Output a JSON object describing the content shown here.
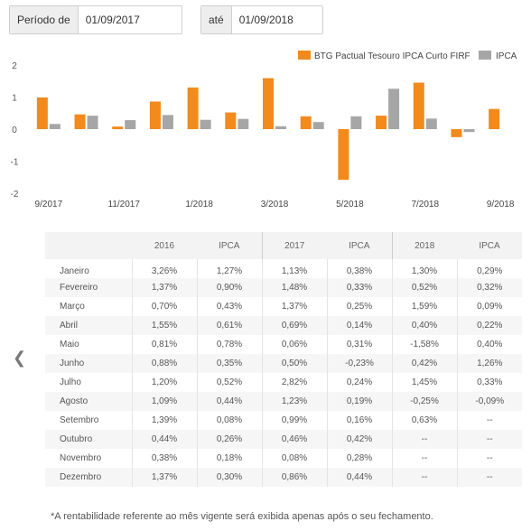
{
  "filters": {
    "start_label": "Período de",
    "start_value": "01/09/2017",
    "end_label": "até",
    "end_value": "01/09/2018"
  },
  "chart_data": {
    "type": "bar",
    "categories": [
      "9/2017",
      "10/2017",
      "11/2017",
      "12/2017",
      "1/2018",
      "2/2018",
      "3/2018",
      "4/2018",
      "5/2018",
      "6/2018",
      "7/2018",
      "8/2018",
      "9/2018"
    ],
    "x_tick_labels": [
      "9/2017",
      "11/2017",
      "1/2018",
      "3/2018",
      "5/2018",
      "7/2018",
      "9/2018"
    ],
    "series": [
      {
        "name": "BTG Pactual Tesouro IPCA Curto FIRF",
        "color": "#f28a1c",
        "values": [
          0.99,
          0.46,
          0.08,
          0.86,
          1.3,
          0.52,
          1.59,
          0.4,
          -1.58,
          0.42,
          1.45,
          -0.25,
          0.63
        ]
      },
      {
        "name": "IPCA",
        "color": "#a6a6a6",
        "values": [
          0.16,
          0.42,
          0.28,
          0.44,
          0.29,
          0.32,
          0.09,
          0.22,
          0.4,
          1.26,
          0.33,
          -0.09,
          null
        ]
      }
    ],
    "ylim": [
      -2,
      2
    ],
    "yticks": [
      2,
      1,
      0,
      -1,
      -2
    ],
    "legend_position": "top-right",
    "grid": false
  },
  "table": {
    "headers": [
      "",
      "2016",
      "IPCA",
      "2017",
      "IPCA",
      "2018",
      "IPCA"
    ],
    "rows": [
      [
        "Janeiro",
        "3,26%",
        "1,27%",
        "1,13%",
        "0,38%",
        "1,30%",
        "0,29%"
      ],
      [
        "Fevereiro",
        "1,37%",
        "0,90%",
        "1,48%",
        "0,33%",
        "0,52%",
        "0,32%"
      ],
      [
        "Março",
        "0,70%",
        "0,43%",
        "1,37%",
        "0,25%",
        "1,59%",
        "0,09%"
      ],
      [
        "Abril",
        "1,55%",
        "0,61%",
        "0,69%",
        "0,14%",
        "0,40%",
        "0,22%"
      ],
      [
        "Maio",
        "0,81%",
        "0,78%",
        "0,06%",
        "0,31%",
        "-1,58%",
        "0,40%"
      ],
      [
        "Junho",
        "0,88%",
        "0,35%",
        "0,50%",
        "-0,23%",
        "0,42%",
        "1,26%"
      ],
      [
        "Julho",
        "1,20%",
        "0,52%",
        "2,82%",
        "0,24%",
        "1,45%",
        "0,33%"
      ],
      [
        "Agosto",
        "1,09%",
        "0,44%",
        "1,23%",
        "0,19%",
        "-0,25%",
        "-0,09%"
      ],
      [
        "Setembro",
        "1,39%",
        "0,08%",
        "0,99%",
        "0,16%",
        "0,63%",
        "--"
      ],
      [
        "Outubro",
        "0,44%",
        "0,26%",
        "0,46%",
        "0,42%",
        "--",
        "--"
      ],
      [
        "Novembro",
        "0,38%",
        "0,18%",
        "0,08%",
        "0,28%",
        "--",
        "--"
      ],
      [
        "Dezembro",
        "1,37%",
        "0,30%",
        "0,86%",
        "0,44%",
        "--",
        "--"
      ]
    ]
  },
  "nav": {
    "prev_icon": "chevron-left-icon",
    "prev_glyph": "❮"
  },
  "footnote": "*A rentabilidade referente ao mês vigente será exibida apenas após o seu fechamento."
}
